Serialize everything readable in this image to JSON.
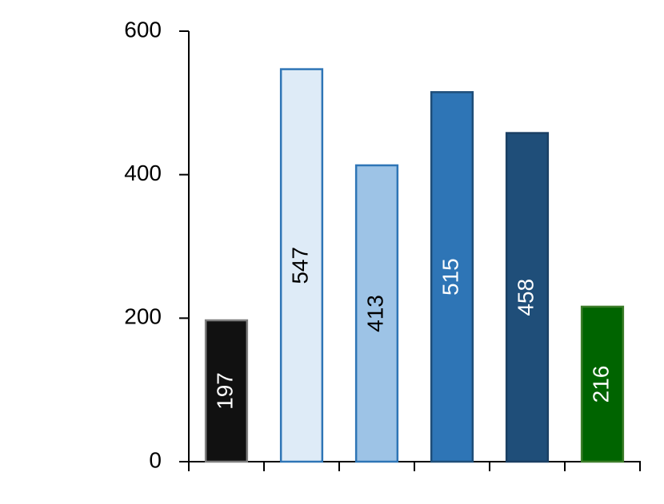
{
  "chart_data": {
    "type": "bar",
    "categories": [
      null,
      null,
      null,
      null,
      null,
      null
    ],
    "values": [
      197,
      547,
      413,
      515,
      458,
      216
    ],
    "colors": [
      "#111111",
      "#deebf7",
      "#9dc3e6",
      "#2e75b6",
      "#1f4e79",
      "#006400"
    ],
    "edge_colors": [
      "#7f7f7f",
      "#2e75b6",
      "#2e75b6",
      "#1f4e79",
      "#1a3f63",
      "#3d7d2a"
    ],
    "label_colors": [
      "#ffffff",
      "#000000",
      "#000000",
      "#ffffff",
      "#ffffff",
      "#ffffff"
    ],
    "ylim": [
      0,
      600
    ],
    "yticks": [
      0,
      200,
      400,
      600
    ],
    "grid": false
  }
}
